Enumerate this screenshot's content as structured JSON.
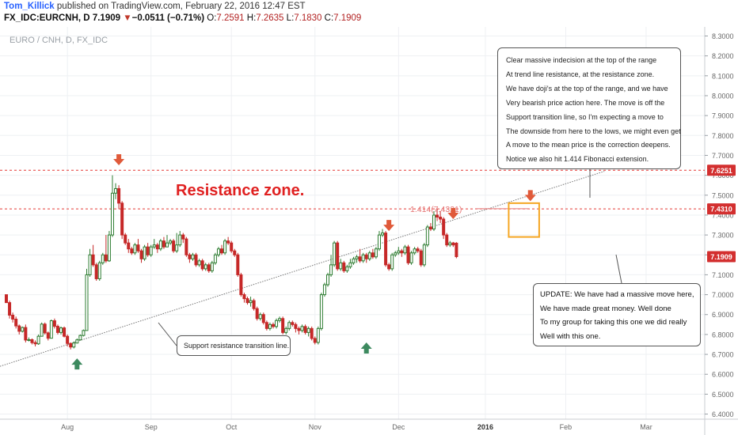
{
  "header": {
    "author": "Tom_Killick",
    "published": "published on TradingView.com, February 22, 2016 12:47 EST",
    "symbol": "FX_IDC:EURCNH, D",
    "price": "7.1909",
    "arrow": "▼",
    "change": "−0.0511 (−0.71%)",
    "o_label": "O:",
    "o": "7.2591",
    "h_label": "H:",
    "h": "7.2635",
    "l_label": "L:",
    "l": "7.1830",
    "c_label": "C:",
    "c": "7.1909"
  },
  "watermark": "EURO / CNH, D, FX_IDC",
  "annotations": {
    "resistance_zone": "Resistance zone.",
    "fib_label": "1.414(7.4321)",
    "support_callout": "Support resistance transition line.",
    "top_callout": [
      "Clear massive indecision at the top of the range",
      "At trend line resistance, at the resistance zone.",
      "We have doji's at the top of the range, and we have",
      "Very bearish price action here. The move is off the",
      "Support transition line, so I'm expecting a move to",
      "The downside from here to the lows, we might even get",
      "A move to the mean price is the correction deepens.",
      "Notice we also hit 1.414 Fibonacci extension."
    ],
    "update_callout": [
      "UPDATE: We have had a massive move here,",
      "We have made great money. Well done",
      "To my group for taking this one we did really",
      "Well with this one."
    ]
  },
  "colors": {
    "up": "#2e7d32",
    "down": "#c62828",
    "resistance_line": "#e53935",
    "arrow_down": "#e05a3a",
    "arrow_up": "#3d8a5f",
    "box": "#f5a623",
    "price_tag": "#d32f2f"
  },
  "chart_data": {
    "type": "candlestick",
    "x_ticks": [
      "Aug",
      "Sep",
      "Oct",
      "Nov",
      "Dec",
      "2016",
      "Feb",
      "Mar"
    ],
    "y_ticks": [
      "8.3000",
      "8.2000",
      "8.1000",
      "8.0000",
      "7.9000",
      "7.8000",
      "7.7000",
      "7.6000",
      "7.5000",
      "7.4000",
      "7.3000",
      "7.2000",
      "7.1000",
      "7.0000",
      "6.9000",
      "6.8000",
      "6.7000",
      "6.6000",
      "6.5000",
      "6.4000"
    ],
    "ylim": [
      6.38,
      8.32
    ],
    "price_tags": [
      "7.6251",
      "7.4310",
      "7.1909"
    ],
    "resistance_levels": [
      7.6251,
      7.431
    ],
    "trendline": {
      "start": [
        0,
        6.64
      ],
      "end": [
        186,
        7.62
      ]
    },
    "down_arrows": [
      [
        35,
        7.65
      ],
      [
        119,
        7.32
      ],
      [
        139,
        7.38
      ],
      [
        163,
        7.47
      ]
    ],
    "up_arrows": [
      [
        22,
        6.68
      ],
      [
        112,
        6.76
      ]
    ],
    "highlight_box": {
      "x": [
        157,
        165
      ],
      "y": [
        7.29,
        7.46
      ]
    },
    "candles": [
      [
        7.0,
        6.96,
        7.0,
        6.96
      ],
      [
        6.96,
        6.897,
        6.97,
        6.88
      ],
      [
        6.897,
        6.877,
        6.91,
        6.86
      ],
      [
        6.877,
        6.843,
        6.89,
        6.83
      ],
      [
        6.843,
        6.816,
        6.85,
        6.8
      ],
      [
        6.816,
        6.835,
        6.84,
        6.81
      ],
      [
        6.835,
        6.772,
        6.85,
        6.76
      ],
      [
        6.772,
        6.774,
        6.785,
        6.765
      ],
      [
        6.774,
        6.759,
        6.78,
        6.75
      ],
      [
        6.759,
        6.753,
        6.77,
        6.74
      ],
      [
        6.753,
        6.791,
        6.8,
        6.748
      ],
      [
        6.791,
        6.852,
        6.86,
        6.79
      ],
      [
        6.852,
        6.808,
        6.86,
        6.8
      ],
      [
        6.808,
        6.781,
        6.815,
        6.77
      ],
      [
        6.781,
        6.869,
        6.875,
        6.78
      ],
      [
        6.869,
        6.841,
        6.88,
        6.83
      ],
      [
        6.841,
        6.81,
        6.85,
        6.8
      ],
      [
        6.81,
        6.833,
        6.84,
        6.8
      ],
      [
        6.833,
        6.791,
        6.84,
        6.785
      ],
      [
        6.791,
        6.755,
        6.8,
        6.74
      ],
      [
        6.755,
        6.737,
        6.76,
        6.725
      ],
      [
        6.737,
        6.757,
        6.765,
        6.73
      ],
      [
        6.757,
        6.773,
        6.78,
        6.755
      ],
      [
        6.773,
        6.795,
        6.8,
        6.77
      ],
      [
        6.795,
        6.82,
        6.825,
        6.79
      ],
      [
        6.82,
        7.1,
        7.13,
        6.82
      ],
      [
        7.1,
        7.2,
        7.23,
        7.09
      ],
      [
        7.2,
        7.15,
        7.25,
        7.14
      ],
      [
        7.15,
        7.08,
        7.16,
        7.07
      ],
      [
        7.08,
        7.16,
        7.17,
        7.07
      ],
      [
        7.16,
        7.2,
        7.21,
        7.15
      ],
      [
        7.2,
        7.17,
        7.3,
        7.16
      ],
      [
        7.17,
        7.3,
        7.32,
        7.165
      ],
      [
        7.3,
        7.51,
        7.6,
        7.29
      ],
      [
        7.51,
        7.533,
        7.56,
        7.48
      ],
      [
        7.533,
        7.46,
        7.55,
        7.43
      ],
      [
        7.46,
        7.3,
        7.47,
        7.28
      ],
      [
        7.3,
        7.26,
        7.31,
        7.25
      ],
      [
        7.26,
        7.23,
        7.28,
        7.21
      ],
      [
        7.23,
        7.21,
        7.24,
        7.2
      ],
      [
        7.21,
        7.25,
        7.26,
        7.2
      ],
      [
        7.25,
        7.22,
        7.28,
        7.21
      ],
      [
        7.22,
        7.18,
        7.23,
        7.16
      ],
      [
        7.18,
        7.24,
        7.25,
        7.17
      ],
      [
        7.24,
        7.2,
        7.26,
        7.19
      ],
      [
        7.2,
        7.24,
        7.25,
        7.19
      ],
      [
        7.24,
        7.25,
        7.28,
        7.23
      ],
      [
        7.25,
        7.23,
        7.26,
        7.21
      ],
      [
        7.23,
        7.27,
        7.28,
        7.22
      ],
      [
        7.27,
        7.24,
        7.29,
        7.23
      ],
      [
        7.24,
        7.26,
        7.3,
        7.24
      ],
      [
        7.26,
        7.27,
        7.28,
        7.25
      ],
      [
        7.27,
        7.22,
        7.28,
        7.21
      ],
      [
        7.22,
        7.25,
        7.31,
        7.21
      ],
      [
        7.25,
        7.3,
        7.32,
        7.24
      ],
      [
        7.3,
        7.28,
        7.31,
        7.26
      ],
      [
        7.28,
        7.2,
        7.29,
        7.19
      ],
      [
        7.2,
        7.18,
        7.21,
        7.16
      ],
      [
        7.18,
        7.2,
        7.21,
        7.17
      ],
      [
        7.2,
        7.15,
        7.21,
        7.14
      ],
      [
        7.15,
        7.17,
        7.18,
        7.14
      ],
      [
        7.17,
        7.13,
        7.18,
        7.12
      ],
      [
        7.13,
        7.15,
        7.16,
        7.12
      ],
      [
        7.15,
        7.12,
        7.16,
        7.11
      ],
      [
        7.12,
        7.16,
        7.17,
        7.11
      ],
      [
        7.16,
        7.2,
        7.21,
        7.15
      ],
      [
        7.2,
        7.23,
        7.24,
        7.19
      ],
      [
        7.23,
        7.21,
        7.25,
        7.2
      ],
      [
        7.21,
        7.27,
        7.28,
        7.2
      ],
      [
        7.27,
        7.26,
        7.29,
        7.25
      ],
      [
        7.26,
        7.22,
        7.27,
        7.21
      ],
      [
        7.22,
        7.2,
        7.23,
        7.19
      ],
      [
        7.2,
        7.1,
        7.21,
        7.09
      ],
      [
        7.1,
        7.0,
        7.11,
        6.99
      ],
      [
        7.0,
        6.98,
        7.01,
        6.96
      ],
      [
        6.98,
        6.96,
        6.99,
        6.95
      ],
      [
        6.96,
        6.97,
        6.99,
        6.94
      ],
      [
        6.97,
        6.93,
        6.98,
        6.92
      ],
      [
        6.93,
        6.88,
        6.94,
        6.87
      ],
      [
        6.88,
        6.9,
        6.91,
        6.87
      ],
      [
        6.9,
        6.86,
        6.91,
        6.85
      ],
      [
        6.86,
        6.83,
        6.87,
        6.82
      ],
      [
        6.83,
        6.85,
        6.86,
        6.82
      ],
      [
        6.85,
        6.84,
        6.86,
        6.83
      ],
      [
        6.84,
        6.87,
        6.88,
        6.83
      ],
      [
        6.87,
        6.88,
        6.89,
        6.86
      ],
      [
        6.88,
        6.81,
        6.89,
        6.8
      ],
      [
        6.81,
        6.83,
        6.84,
        6.8
      ],
      [
        6.83,
        6.86,
        6.87,
        6.82
      ],
      [
        6.86,
        6.85,
        6.87,
        6.84
      ],
      [
        6.85,
        6.83,
        6.86,
        6.81
      ],
      [
        6.83,
        6.82,
        6.84,
        6.8
      ],
      [
        6.82,
        6.84,
        6.85,
        6.81
      ],
      [
        6.84,
        6.81,
        6.85,
        6.8
      ],
      [
        6.81,
        6.83,
        6.84,
        6.79
      ],
      [
        6.83,
        6.78,
        6.84,
        6.77
      ],
      [
        6.78,
        6.76,
        6.79,
        6.75
      ],
      [
        6.76,
        6.83,
        6.84,
        6.75
      ],
      [
        6.83,
        7.0,
        7.01,
        6.82
      ],
      [
        7.0,
        7.05,
        7.06,
        6.99
      ],
      [
        7.05,
        7.1,
        7.11,
        7.04
      ],
      [
        7.1,
        7.15,
        7.2,
        7.09
      ],
      [
        7.15,
        7.26,
        7.27,
        7.14
      ],
      [
        7.26,
        7.13,
        7.27,
        7.12
      ],
      [
        7.13,
        7.16,
        7.18,
        7.12
      ],
      [
        7.16,
        7.12,
        7.17,
        7.11
      ],
      [
        7.12,
        7.14,
        7.15,
        7.11
      ],
      [
        7.14,
        7.16,
        7.18,
        7.13
      ],
      [
        7.16,
        7.18,
        7.19,
        7.15
      ],
      [
        7.18,
        7.19,
        7.2,
        7.16
      ],
      [
        7.19,
        7.17,
        7.23,
        7.16
      ],
      [
        7.17,
        7.2,
        7.21,
        7.16
      ],
      [
        7.2,
        7.18,
        7.21,
        7.16
      ],
      [
        7.18,
        7.21,
        7.22,
        7.17
      ],
      [
        7.21,
        7.19,
        7.23,
        7.18
      ],
      [
        7.19,
        7.23,
        7.24,
        7.18
      ],
      [
        7.23,
        7.3,
        7.32,
        7.22
      ],
      [
        7.3,
        7.31,
        7.33,
        7.29
      ],
      [
        7.31,
        7.15,
        7.32,
        7.14
      ],
      [
        7.15,
        7.13,
        7.16,
        7.12
      ],
      [
        7.13,
        7.2,
        7.21,
        7.12
      ],
      [
        7.2,
        7.21,
        7.22,
        7.19
      ],
      [
        7.21,
        7.22,
        7.24,
        7.2
      ],
      [
        7.22,
        7.21,
        7.23,
        7.19
      ],
      [
        7.21,
        7.24,
        7.25,
        7.2
      ],
      [
        7.24,
        7.16,
        7.25,
        7.15
      ],
      [
        7.16,
        7.21,
        7.22,
        7.15
      ],
      [
        7.21,
        7.23,
        7.24,
        7.2
      ],
      [
        7.23,
        7.22,
        7.24,
        7.21
      ],
      [
        7.22,
        7.15,
        7.23,
        7.14
      ],
      [
        7.15,
        7.25,
        7.26,
        7.14
      ],
      [
        7.25,
        7.34,
        7.35,
        7.24
      ],
      [
        7.34,
        7.33,
        7.36,
        7.32
      ],
      [
        7.33,
        7.4,
        7.42,
        7.32
      ],
      [
        7.4,
        7.39,
        7.43,
        7.37
      ],
      [
        7.39,
        7.38,
        7.42,
        7.36
      ],
      [
        7.38,
        7.3,
        7.39,
        7.28
      ],
      [
        7.3,
        7.25,
        7.31,
        7.24
      ],
      [
        7.25,
        7.26,
        7.27,
        7.24
      ],
      [
        7.26,
        7.25,
        7.265,
        7.24
      ],
      [
        7.259,
        7.191,
        7.264,
        7.183
      ]
    ]
  }
}
